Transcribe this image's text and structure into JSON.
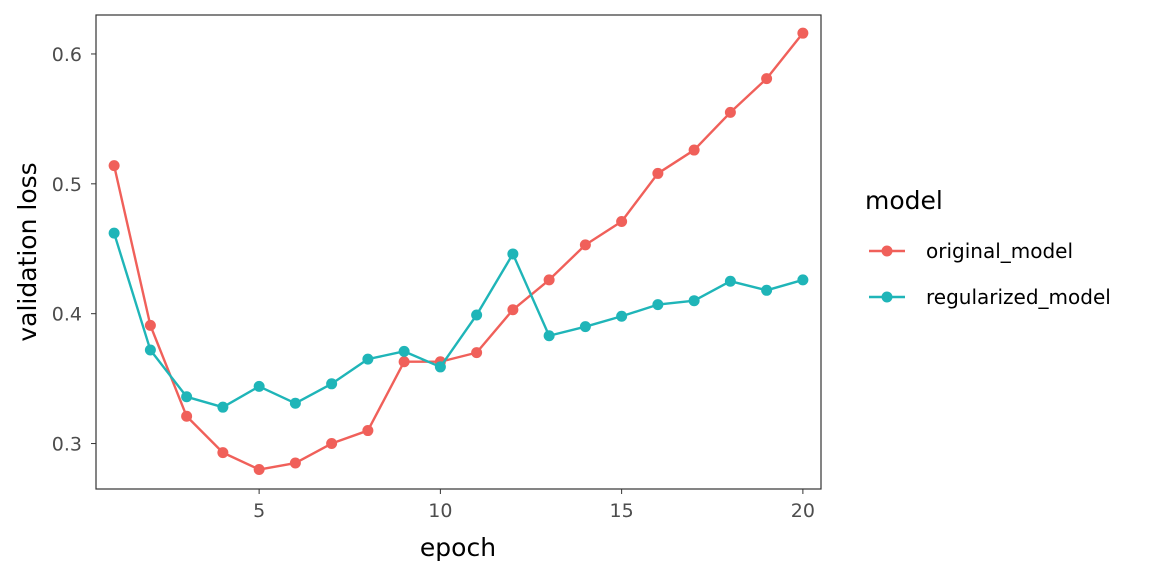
{
  "chart_data": {
    "type": "line",
    "xlabel": "epoch",
    "ylabel": "validation loss",
    "x": [
      1,
      2,
      3,
      4,
      5,
      6,
      7,
      8,
      9,
      10,
      11,
      12,
      13,
      14,
      15,
      16,
      17,
      18,
      19,
      20
    ],
    "xlim": [
      0.5,
      20.5
    ],
    "ylim": [
      0.265,
      0.63
    ],
    "xticks": [
      5,
      10,
      15,
      20
    ],
    "yticks": [
      0.3,
      0.4,
      0.5,
      0.6
    ],
    "xtick_labels": [
      "5",
      "10",
      "15",
      "20"
    ],
    "ytick_labels": [
      "0.3",
      "0.4",
      "0.5",
      "0.6"
    ],
    "grid": false,
    "legend": {
      "title": "model",
      "position": "right"
    },
    "series": [
      {
        "name": "original_model",
        "color": "#f0605a",
        "values": [
          0.514,
          0.391,
          0.321,
          0.293,
          0.28,
          0.285,
          0.3,
          0.31,
          0.363,
          0.363,
          0.37,
          0.403,
          0.426,
          0.453,
          0.471,
          0.508,
          0.526,
          0.555,
          0.581,
          0.616
        ]
      },
      {
        "name": "regularized_model",
        "color": "#1fb5b8",
        "values": [
          0.462,
          0.372,
          0.336,
          0.328,
          0.344,
          0.331,
          0.346,
          0.365,
          0.371,
          0.359,
          0.399,
          0.446,
          0.383,
          0.39,
          0.398,
          0.407,
          0.41,
          0.425,
          0.418,
          0.426
        ]
      }
    ]
  }
}
